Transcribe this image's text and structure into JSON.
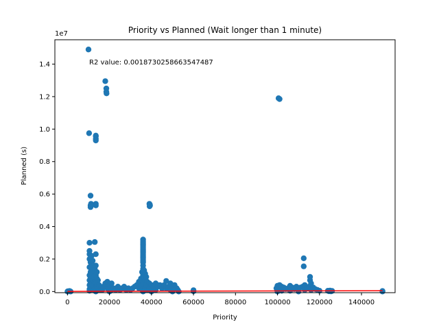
{
  "chart_data": {
    "type": "scatter",
    "title": "Priority vs Planned (Wait longer than 1 minute)",
    "xlabel": "Priority",
    "ylabel": "Planned (s)",
    "y_offset_label": "1e7",
    "annotation": "R2 value: 0.0018730258663547487",
    "xlim": [
      -6000,
      156000
    ],
    "ylim": [
      -70000,
      15500000
    ],
    "x_ticks": [
      0,
      20000,
      40000,
      60000,
      80000,
      100000,
      120000,
      140000
    ],
    "x_tick_labels": [
      "0",
      "20000",
      "40000",
      "60000",
      "80000",
      "100000",
      "120000",
      "140000"
    ],
    "y_ticks": [
      0,
      2000000,
      4000000,
      6000000,
      8000000,
      10000000,
      12000000,
      14000000
    ],
    "y_tick_labels": [
      "0.0",
      "0.2",
      "0.4",
      "0.6",
      "0.8",
      "1.0",
      "1.2",
      "1.4"
    ],
    "grid": false,
    "colors": {
      "points": "#1f77b4",
      "fit": "#ff0000",
      "frame": "#000000"
    },
    "fit_line": {
      "x": [
        0,
        150000
      ],
      "y": [
        10000,
        50000
      ]
    },
    "series": [
      {
        "points": [
          [
            0,
            0
          ],
          [
            200,
            20000
          ],
          [
            400,
            10000
          ],
          [
            1000,
            30000
          ],
          [
            1500,
            0
          ],
          [
            10000,
            14900000
          ],
          [
            10300,
            9750000
          ],
          [
            10500,
            2500000
          ],
          [
            10500,
            3000000
          ],
          [
            10500,
            2300000
          ],
          [
            10500,
            2000000
          ],
          [
            10500,
            1500000
          ],
          [
            10500,
            1000000
          ],
          [
            10500,
            700000
          ],
          [
            10500,
            400000
          ],
          [
            10500,
            150000
          ],
          [
            10500,
            50000
          ],
          [
            11000,
            5900000
          ],
          [
            11000,
            5300000
          ],
          [
            11000,
            5200000
          ],
          [
            11200,
            5400000
          ],
          [
            11000,
            1800000
          ],
          [
            11000,
            1200000
          ],
          [
            11000,
            800000
          ],
          [
            11000,
            500000
          ],
          [
            11500,
            2200000
          ],
          [
            11500,
            1100000
          ],
          [
            11500,
            300000
          ],
          [
            12000,
            1900000
          ],
          [
            12000,
            1300000
          ],
          [
            12000,
            700000
          ],
          [
            12000,
            200000
          ],
          [
            12500,
            1600000
          ],
          [
            12500,
            900000
          ],
          [
            12500,
            400000
          ],
          [
            12500,
            100000
          ],
          [
            13000,
            3050000
          ],
          [
            13000,
            1400000
          ],
          [
            13000,
            600000
          ],
          [
            13000,
            50000
          ],
          [
            13500,
            9600000
          ],
          [
            13500,
            9550000
          ],
          [
            13500,
            9400000
          ],
          [
            13500,
            9300000
          ],
          [
            13500,
            5400000
          ],
          [
            13500,
            5300000
          ],
          [
            13500,
            2300000
          ],
          [
            13500,
            1600000
          ],
          [
            13500,
            1000000
          ],
          [
            13500,
            500000
          ],
          [
            13500,
            200000
          ],
          [
            13500,
            0
          ],
          [
            14000,
            1200000
          ],
          [
            14000,
            800000
          ],
          [
            14000,
            300000
          ],
          [
            14500,
            700000
          ],
          [
            14500,
            200000
          ],
          [
            15000,
            400000
          ],
          [
            15000,
            100000
          ],
          [
            15500,
            300000
          ],
          [
            16000,
            200000
          ],
          [
            16500,
            100000
          ],
          [
            17000,
            300000
          ],
          [
            18000,
            12950000
          ],
          [
            18500,
            12500000
          ],
          [
            18500,
            12300000
          ],
          [
            18600,
            12200000
          ],
          [
            18000,
            500000
          ],
          [
            19000,
            600000
          ],
          [
            19000,
            200000
          ],
          [
            20000,
            400000
          ],
          [
            20000,
            0
          ],
          [
            21000,
            500000
          ],
          [
            21000,
            100000
          ],
          [
            22000,
            200000
          ],
          [
            23000,
            100000
          ],
          [
            24000,
            300000
          ],
          [
            25000,
            100000
          ],
          [
            26000,
            200000
          ],
          [
            27000,
            300000
          ],
          [
            28000,
            100000
          ],
          [
            29000,
            200000
          ],
          [
            30000,
            100000
          ],
          [
            31000,
            200000
          ],
          [
            32000,
            300000
          ],
          [
            33000,
            400000
          ],
          [
            34000,
            600000
          ],
          [
            34000,
            200000
          ],
          [
            35000,
            800000
          ],
          [
            35000,
            300000
          ],
          [
            35500,
            1200000
          ],
          [
            35500,
            600000
          ],
          [
            35500,
            100000
          ],
          [
            36000,
            3200000
          ],
          [
            36000,
            3100000
          ],
          [
            36000,
            3000000
          ],
          [
            36000,
            2900000
          ],
          [
            36000,
            2800000
          ],
          [
            36000,
            2700000
          ],
          [
            36000,
            2600000
          ],
          [
            36000,
            2500000
          ],
          [
            36000,
            2400000
          ],
          [
            36000,
            2300000
          ],
          [
            36000,
            2200000
          ],
          [
            36000,
            2100000
          ],
          [
            36000,
            2000000
          ],
          [
            36000,
            1900000
          ],
          [
            36000,
            1800000
          ],
          [
            36000,
            1600000
          ],
          [
            36000,
            1400000
          ],
          [
            36000,
            1000000
          ],
          [
            36000,
            500000
          ],
          [
            36000,
            0
          ],
          [
            36500,
            1300000
          ],
          [
            36500,
            900000
          ],
          [
            37000,
            1100000
          ],
          [
            37000,
            700000
          ],
          [
            37000,
            200000
          ],
          [
            37500,
            900000
          ],
          [
            37500,
            400000
          ],
          [
            38000,
            600000
          ],
          [
            38000,
            100000
          ],
          [
            39000,
            5400000
          ],
          [
            39200,
            5350000
          ],
          [
            39300,
            5300000
          ],
          [
            39100,
            5250000
          ],
          [
            39000,
            500000
          ],
          [
            39000,
            200000
          ],
          [
            40000,
            400000
          ],
          [
            40000,
            0
          ],
          [
            41000,
            300000
          ],
          [
            42000,
            500000
          ],
          [
            42000,
            100000
          ],
          [
            43000,
            300000
          ],
          [
            44000,
            400000
          ],
          [
            45000,
            200000
          ],
          [
            46000,
            400000
          ],
          [
            47000,
            650000
          ],
          [
            47000,
            200000
          ],
          [
            48000,
            300000
          ],
          [
            49000,
            500000
          ],
          [
            49000,
            100000
          ],
          [
            50000,
            300000
          ],
          [
            50000,
            0
          ],
          [
            51000,
            400000
          ],
          [
            52000,
            200000
          ],
          [
            52500,
            100000
          ],
          [
            53000,
            0
          ],
          [
            60000,
            80000
          ],
          [
            60000,
            20000
          ],
          [
            99500,
            200000
          ],
          [
            100000,
            350000
          ],
          [
            100000,
            0
          ],
          [
            100500,
            11900000
          ],
          [
            101000,
            11850000
          ],
          [
            101000,
            400000
          ],
          [
            101500,
            200000
          ],
          [
            102000,
            300000
          ],
          [
            102000,
            50000
          ],
          [
            103000,
            250000
          ],
          [
            104000,
            150000
          ],
          [
            105000,
            200000
          ],
          [
            106000,
            350000
          ],
          [
            106000,
            50000
          ],
          [
            107000,
            250000
          ],
          [
            108000,
            150000
          ],
          [
            109000,
            300000
          ],
          [
            110000,
            200000
          ],
          [
            110000,
            0
          ],
          [
            111000,
            250000
          ],
          [
            112000,
            300000
          ],
          [
            112500,
            2050000
          ],
          [
            112500,
            1550000
          ],
          [
            113000,
            400000
          ],
          [
            113000,
            100000
          ],
          [
            114000,
            200000
          ],
          [
            115000,
            300000
          ],
          [
            115500,
            900000
          ],
          [
            115500,
            700000
          ],
          [
            116000,
            500000
          ],
          [
            116000,
            100000
          ],
          [
            117000,
            250000
          ],
          [
            118000,
            150000
          ],
          [
            119000,
            100000
          ],
          [
            120000,
            50000
          ],
          [
            124000,
            50000
          ],
          [
            124500,
            20000
          ],
          [
            125000,
            60000
          ],
          [
            125500,
            10000
          ],
          [
            126000,
            40000
          ],
          [
            150000,
            0
          ],
          [
            150000,
            30000
          ]
        ]
      }
    ]
  }
}
